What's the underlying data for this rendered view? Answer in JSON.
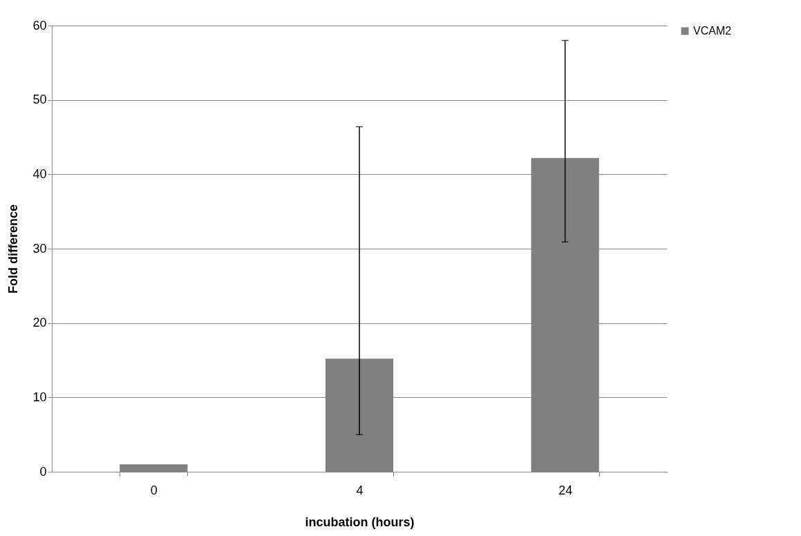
{
  "chart_data": {
    "type": "bar",
    "xlabel": "incubation (hours)",
    "ylabel": "Fold difference",
    "categories": [
      "0",
      "4",
      "24"
    ],
    "series": [
      {
        "name": "VCAM2",
        "color": "#808080",
        "values": [
          1,
          15.2,
          42.2
        ],
        "errors": [
          null,
          [
            5,
            46.4
          ],
          [
            30.9,
            58
          ]
        ]
      }
    ],
    "ylim": [
      0,
      60
    ],
    "yticks": [
      0,
      10,
      20,
      30,
      40,
      50,
      60
    ],
    "grid": "y",
    "legend": "right"
  }
}
